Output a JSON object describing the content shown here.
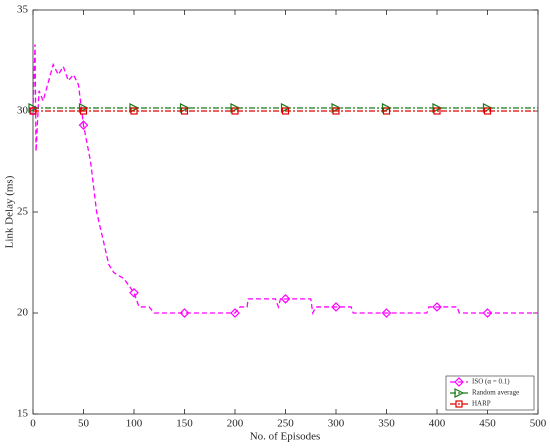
{
  "chart_data": {
    "type": "line",
    "xlabel": "No. of Episodes",
    "ylabel": "Link Delay (ms)",
    "xlim": [
      0,
      500
    ],
    "ylim": [
      15,
      35
    ],
    "xticks": [
      0,
      50,
      100,
      150,
      200,
      250,
      300,
      350,
      400,
      450,
      500
    ],
    "yticks": [
      15,
      20,
      25,
      30,
      35
    ],
    "legend": "lower right",
    "series": [
      {
        "name": "ISO (α = 0.1)",
        "color": "#ff00ff",
        "dash": "5,3",
        "marker": "diamond",
        "x": [
          0,
          2,
          3,
          6,
          10,
          20,
          25,
          30,
          35,
          40,
          45,
          50,
          57,
          63,
          70,
          75,
          80,
          90,
          100,
          105,
          115,
          120,
          150,
          200,
          205,
          212,
          213,
          240,
          243,
          245,
          250,
          275,
          277,
          280,
          300,
          315,
          317,
          350,
          390,
          392,
          400,
          420,
          422,
          450,
          500
        ],
        "values": [
          30,
          33.3,
          28,
          31,
          30.5,
          32.3,
          31.8,
          32.2,
          31.5,
          31.8,
          31.3,
          29.3,
          27.5,
          25,
          23.5,
          22.4,
          22,
          21.7,
          21,
          20.3,
          20.3,
          20,
          20,
          20,
          20.3,
          20.3,
          20.7,
          20.7,
          20.3,
          20.7,
          20.7,
          20.7,
          20,
          20.3,
          20.3,
          20.3,
          20,
          20,
          20,
          20.3,
          20.3,
          20.3,
          20,
          20,
          20
        ]
      },
      {
        "name": "Random average",
        "color": "#1a7a1a",
        "dash": "6,2,2,2",
        "marker": "triangle",
        "x": [
          0,
          50,
          100,
          150,
          200,
          250,
          300,
          350,
          400,
          450,
          500
        ],
        "values": [
          30.15,
          30.15,
          30.15,
          30.15,
          30.15,
          30.15,
          30.15,
          30.15,
          30.15,
          30.15,
          30.15
        ]
      },
      {
        "name": "HARP",
        "color": "#e00000",
        "dash": "6,2,2,2",
        "marker": "square",
        "x": [
          0,
          50,
          100,
          150,
          200,
          250,
          300,
          350,
          400,
          450,
          500
        ],
        "values": [
          30,
          30,
          30,
          30,
          30,
          30,
          30,
          30,
          30,
          30,
          30
        ]
      }
    ]
  }
}
